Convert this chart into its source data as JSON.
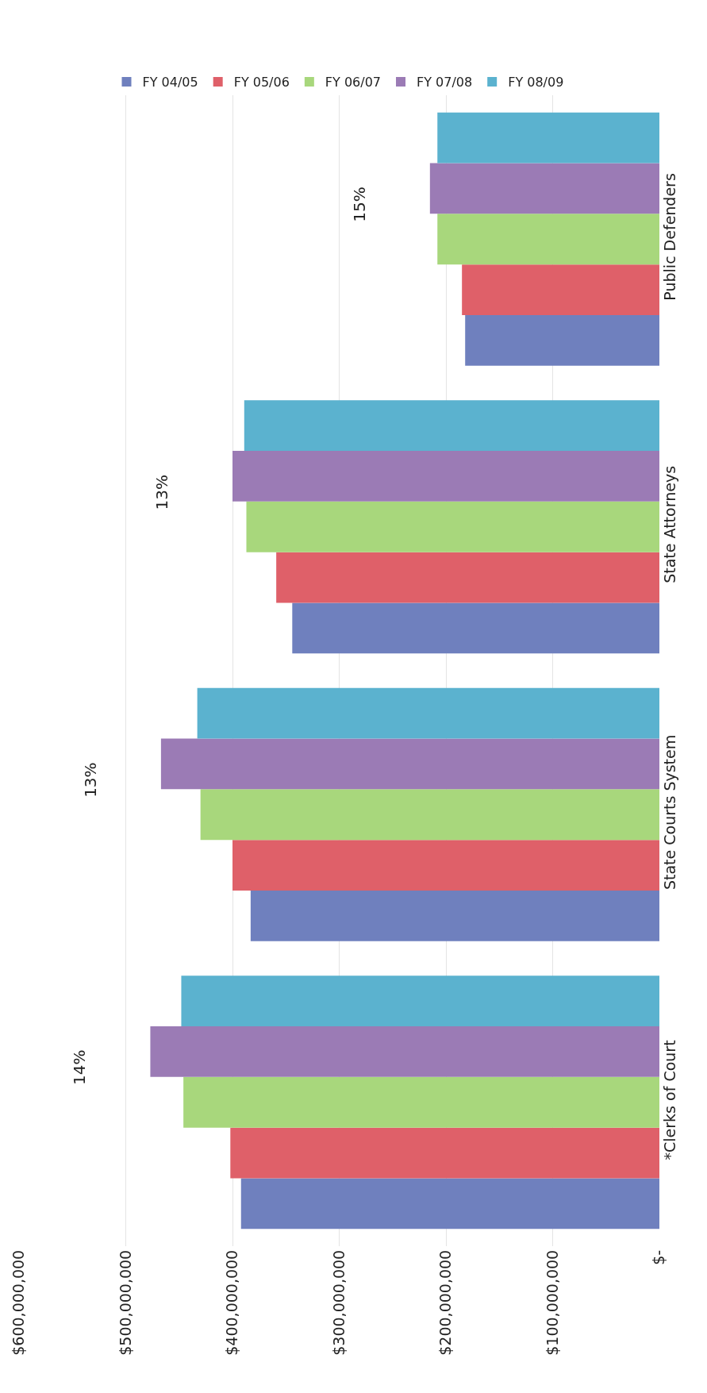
{
  "chart_data": {
    "type": "bar",
    "orientation": "horizontal",
    "categories": [
      "Public Defenders",
      "State Attorneys",
      "State Courts System",
      "*Clerks of Court"
    ],
    "series": [
      {
        "name": "FY 04/05",
        "color": "#6f80be",
        "values": [
          182000000,
          344000000,
          383000000,
          392000000
        ]
      },
      {
        "name": "FY 05/06",
        "color": "#df6069",
        "values": [
          185000000,
          359000000,
          400000000,
          402000000
        ]
      },
      {
        "name": "FY 06/07",
        "color": "#a8d77c",
        "values": [
          208000000,
          387000000,
          430000000,
          446000000
        ]
      },
      {
        "name": "FY 07/08",
        "color": "#9b7bb5",
        "values": [
          215000000,
          400000000,
          467000000,
          477000000
        ]
      },
      {
        "name": "FY 08/09",
        "color": "#5bb2cf",
        "values": [
          208000000,
          389000000,
          433000000,
          448000000
        ]
      }
    ],
    "xlim": [
      600000000,
      0
    ],
    "xticks": [
      {
        "value": 600000000,
        "label": "$600,000,000"
      },
      {
        "value": 500000000,
        "label": "$500,000,000"
      },
      {
        "value": 400000000,
        "label": "$400,000,000"
      },
      {
        "value": 300000000,
        "label": "$300,000,000"
      },
      {
        "value": 200000000,
        "label": "$200,000,000"
      },
      {
        "value": 100000000,
        "label": "$100,000,000"
      },
      {
        "value": 0,
        "label": "$-"
      }
    ],
    "annotations": [
      "15%",
      "13%",
      "13%",
      "14%"
    ],
    "grid": "x",
    "legend": "top"
  }
}
